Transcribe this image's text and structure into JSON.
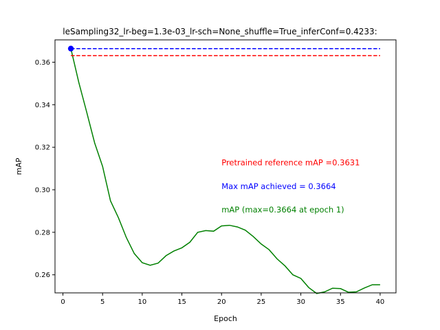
{
  "chart_data": {
    "type": "line",
    "title": "leSampling32_lr-beg=1.3e-03_lr-sch=None_shuffle=True_inferConf=0.4233:",
    "xlabel": "Epoch",
    "ylabel": "mAP",
    "xlim": [
      -1,
      42
    ],
    "ylim": [
      0.2515,
      0.3705
    ],
    "xticks": [
      0,
      5,
      10,
      15,
      20,
      25,
      30,
      35,
      40
    ],
    "yticks": [
      0.26,
      0.28,
      0.3,
      0.32,
      0.34,
      0.36
    ],
    "ytick_labels": [
      "0.26",
      "0.28",
      "0.30",
      "0.32",
      "0.34",
      "0.36"
    ],
    "grid": false,
    "series": [
      {
        "color": "#008000",
        "style": "solid",
        "x": [
          1,
          2,
          3,
          4,
          5,
          6,
          7,
          8,
          9,
          10,
          11,
          12,
          13,
          14,
          15,
          16,
          17,
          18,
          19,
          20,
          21,
          22,
          23,
          24,
          25,
          26,
          27,
          28,
          29,
          30,
          31,
          32,
          33,
          34,
          35,
          36,
          37,
          38,
          39,
          40
        ],
        "values": [
          0.3664,
          0.3505,
          0.3365,
          0.322,
          0.311,
          0.2948,
          0.2868,
          0.2775,
          0.27,
          0.2657,
          0.2645,
          0.2655,
          0.269,
          0.2712,
          0.2727,
          0.2753,
          0.28,
          0.2808,
          0.2805,
          0.283,
          0.2833,
          0.2825,
          0.281,
          0.278,
          0.2745,
          0.2718,
          0.2675,
          0.2642,
          0.26,
          0.2583,
          0.254,
          0.2512,
          0.252,
          0.2537,
          0.2535,
          0.2518,
          0.252,
          0.2538,
          0.2553,
          0.2553
        ]
      },
      {
        "color": "#0000ff",
        "style": "dashed",
        "x": [
          1,
          40
        ],
        "values": [
          0.3664,
          0.3664
        ]
      },
      {
        "color": "#ff0000",
        "style": "dashed",
        "x": [
          1,
          40
        ],
        "values": [
          0.3631,
          0.3631
        ]
      }
    ],
    "marker": {
      "x": 1,
      "y": 0.3664,
      "color": "#0000ff"
    },
    "annotations": [
      {
        "text": "Pretrained reference mAP =0.3631",
        "color": "#ff0000",
        "x": 20,
        "y": 0.3115
      },
      {
        "text": "Max mAP achieved = 0.3664",
        "color": "#0000ff",
        "x": 20,
        "y": 0.3003
      },
      {
        "text": "mAP (max=0.3664 at epoch 1)",
        "color": "#008000",
        "x": 20,
        "y": 0.2893
      }
    ]
  }
}
